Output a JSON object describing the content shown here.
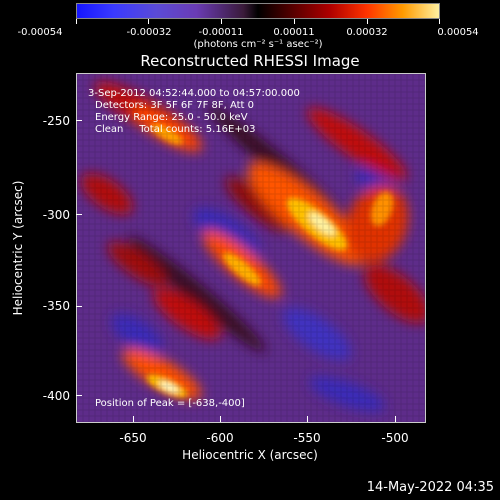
{
  "title": "Reconstructed RHESSI Image",
  "colorbar": {
    "ticks": [
      "-0.00054",
      "-0.00032",
      "-0.00011",
      "0.00011",
      "0.00032",
      "0.00054"
    ],
    "unit": "(photons cm⁻² s⁻¹ asec⁻²)"
  },
  "info": {
    "time_range": "3-Sep-2012 04:52:44.000 to 04:57:00.000",
    "detectors": "Detectors: 3F 5F 6F 7F 8F, Att 0",
    "energy": "Energy Range: 25.0 - 50.0 keV",
    "clean": "Clean     Total counts: 5.16E+03",
    "peak": "Position of Peak = [-638,-400]"
  },
  "axes": {
    "xlabel": "Heliocentric X (arcsec)",
    "ylabel": "Heliocentric Y (arcsec)",
    "xticks": [
      "-650",
      "-600",
      "-550",
      "-500"
    ],
    "yticks": [
      "-250",
      "-300",
      "-350",
      "-400"
    ],
    "xrange": [
      -680,
      -480
    ],
    "yrange": [
      -420,
      -220
    ]
  },
  "footer": "14-May-2022 04:35"
}
